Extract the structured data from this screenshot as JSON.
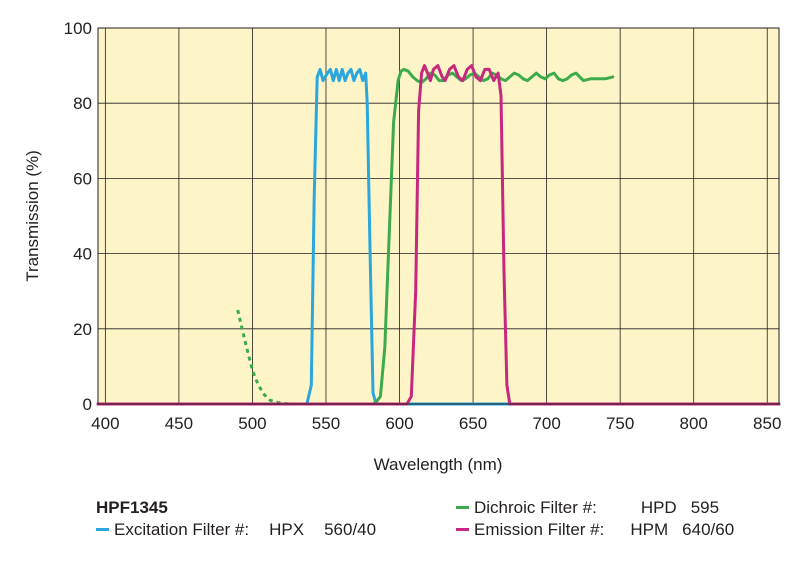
{
  "chart_data": {
    "type": "line",
    "xlabel": "Wavelength (nm)",
    "ylabel": "Transmission (%)",
    "xlim": [
      395,
      858
    ],
    "ylim": [
      0,
      100
    ],
    "xticks": [
      400,
      450,
      500,
      550,
      600,
      650,
      700,
      750,
      800,
      850
    ],
    "yticks": [
      0,
      20,
      40,
      60,
      80,
      100
    ],
    "grid": true,
    "background_color": "#fdf5c8",
    "series": [
      {
        "name": "Excitation Filter",
        "color": "#2aa7de",
        "style": "solid",
        "x": [
          395,
          530,
          537,
          540,
          542,
          544,
          546,
          548,
          551,
          553,
          555,
          557,
          559,
          561,
          563,
          565,
          567,
          569,
          571,
          573,
          575,
          577,
          578,
          580,
          582,
          584,
          586,
          600,
          700,
          858
        ],
        "y": [
          0,
          0,
          0,
          5,
          55,
          87,
          89,
          86,
          88,
          89,
          86,
          89,
          86,
          89,
          86,
          88,
          89,
          86,
          88,
          89,
          86,
          88,
          80,
          40,
          3,
          0,
          0,
          0,
          0,
          0
        ]
      },
      {
        "name": "Dichroic Filter",
        "color": "#3daa4b",
        "style": "solid",
        "x": [
          582,
          584,
          587,
          590,
          593,
          596,
          599,
          601,
          603,
          606,
          609,
          612,
          615,
          618,
          621,
          624,
          627,
          630,
          633,
          636,
          639,
          642,
          645,
          648,
          651,
          654,
          657,
          660,
          663,
          666,
          669,
          672,
          675,
          678,
          681,
          684,
          687,
          690,
          693,
          696,
          699,
          702,
          705,
          708,
          711,
          714,
          717,
          720,
          725,
          730,
          735,
          740,
          745
        ],
        "y": [
          0,
          0.5,
          2,
          15,
          45,
          75,
          86,
          88.5,
          89,
          88.5,
          87,
          86,
          85.5,
          86.5,
          88,
          87.5,
          86,
          86,
          87.5,
          88,
          87,
          86,
          86.5,
          87.5,
          88,
          87,
          86,
          86.5,
          88,
          87.5,
          86.5,
          86,
          87,
          88,
          87.5,
          86.5,
          86,
          87,
          88,
          87,
          86.5,
          87.5,
          88,
          86.5,
          86,
          86.5,
          87.5,
          88,
          86,
          86.5,
          86.5,
          86.5,
          87
        ]
      },
      {
        "name": "Dichroic Filter (short wavelength)",
        "color": "#3daa4b",
        "style": "dotted",
        "x": [
          490,
          493,
          496,
          500,
          504,
          508,
          512,
          516,
          520,
          525,
          530
        ],
        "y": [
          25,
          20,
          15,
          9,
          5,
          2.5,
          1,
          0.5,
          0.2,
          0,
          0
        ]
      },
      {
        "name": "Emission Filter",
        "color": "#c7287d",
        "style": "solid",
        "x": [
          395,
          605,
          608,
          611,
          613,
          615,
          617,
          619,
          621,
          623,
          626,
          629,
          631,
          634,
          637,
          640,
          643,
          646,
          649,
          652,
          655,
          658,
          661,
          664,
          667,
          669,
          671,
          673,
          675,
          680,
          858
        ],
        "y": [
          0,
          0,
          2,
          30,
          78,
          88,
          90,
          88,
          86,
          89,
          90,
          87,
          86,
          89,
          90,
          87,
          86,
          89,
          90,
          87,
          86,
          89,
          89,
          86,
          88,
          82,
          35,
          5,
          0,
          0,
          0
        ]
      }
    ]
  },
  "legend": {
    "title": "HPF1345",
    "excitation": {
      "label": "Excitation Filter #:",
      "part": "HPX",
      "value": "560/40",
      "color": "#2aa7de"
    },
    "dichroic": {
      "label": "Dichroic Filter #:",
      "part": "HPD",
      "value": "595",
      "color": "#3daa4b"
    },
    "emission": {
      "label": "Emission Filter #:",
      "part": "HPM",
      "value": "640/60",
      "color": "#c7287d"
    }
  }
}
